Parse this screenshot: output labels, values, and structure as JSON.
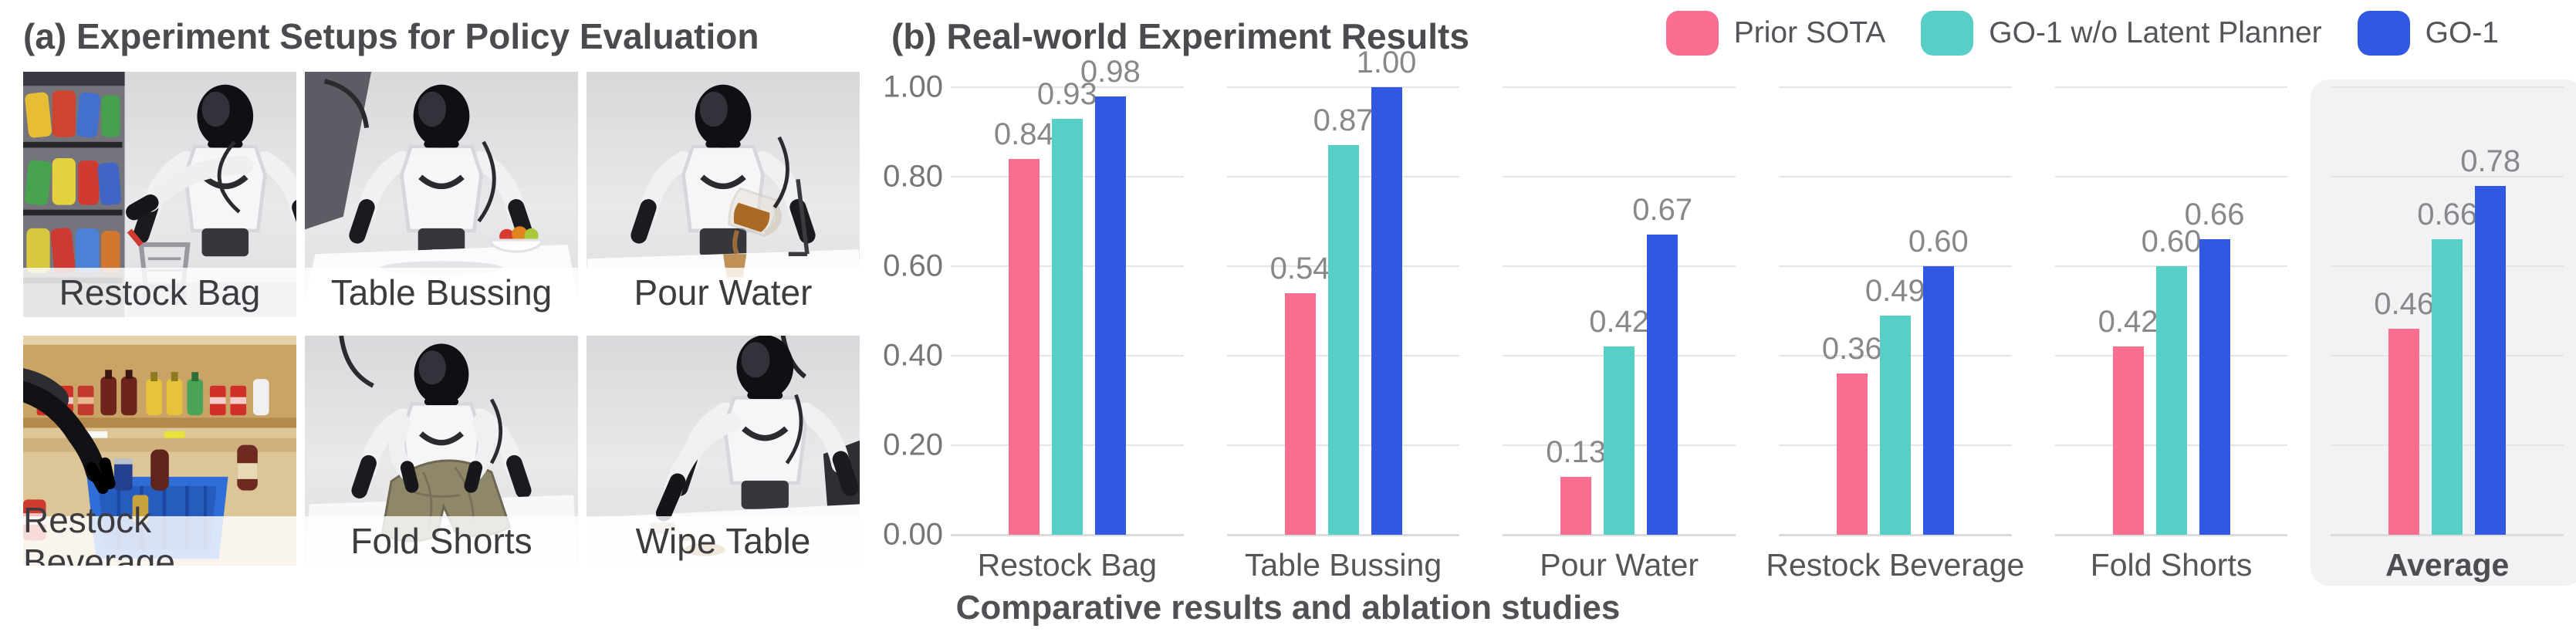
{
  "panel_a": {
    "title": "(a) Experiment Setups for Policy Evaluation",
    "photos": [
      {
        "label": "Restock Bag"
      },
      {
        "label": "Table Bussing"
      },
      {
        "label": "Pour Water"
      },
      {
        "label": "Restock Beverage"
      },
      {
        "label": "Fold Shorts"
      },
      {
        "label": "Wipe Table"
      }
    ]
  },
  "panel_b": {
    "title": "(b) Real-world Experiment Results",
    "caption": "Comparative results and ablation studies"
  },
  "chart_data": {
    "type": "bar",
    "title": "(b) Real-world Experiment Results",
    "categories": [
      "Restock Bag",
      "Table Bussing",
      "Pour Water",
      "Restock Beverage",
      "Fold Shorts",
      "Average"
    ],
    "series": [
      {
        "name": "Prior SOTA",
        "color": "#FA6E90",
        "values": [
          0.84,
          0.54,
          0.13,
          0.36,
          0.42,
          0.46
        ]
      },
      {
        "name": "GO-1 w/o Latent Planner",
        "color": "#57CFC6",
        "values": [
          0.93,
          0.87,
          0.42,
          0.49,
          0.6,
          0.66
        ]
      },
      {
        "name": "GO-1",
        "color": "#3058E3",
        "values": [
          0.98,
          1.0,
          0.67,
          0.6,
          0.66,
          0.78
        ]
      }
    ],
    "yticks": [
      "1.00",
      "0.80",
      "0.60",
      "0.40",
      "0.20",
      "0.00"
    ],
    "ylim": [
      0,
      1.0
    ],
    "grid": "horizontal",
    "gridline_values": [
      0,
      0.2,
      0.4,
      0.6,
      0.8,
      1.0
    ],
    "legend_position": "top-right",
    "highlight_category": "Average",
    "highlight_color": "#f2f2f4",
    "value_label_format": "2dp"
  }
}
